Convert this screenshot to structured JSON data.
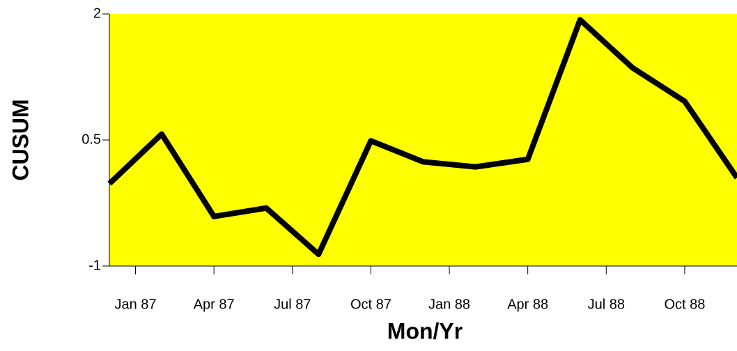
{
  "chart_data": {
    "type": "line",
    "x": [
      "1986-12",
      "1987-02",
      "1987-04",
      "1987-06",
      "1987-08",
      "1987-10",
      "1987-12",
      "1988-02",
      "1988-04",
      "1988-06",
      "1988-08",
      "1988-10",
      "1988-12"
    ],
    "series": [
      {
        "name": "CUSUM",
        "color": "#000000",
        "values": [
          -0.02,
          0.57,
          -0.41,
          -0.31,
          -0.86,
          0.49,
          0.24,
          0.18,
          0.27,
          1.93,
          1.36,
          0.96,
          0.05
        ]
      }
    ],
    "xlim": [
      "1986-12",
      "1988-12"
    ],
    "xticks": [
      {
        "value": "1987-01",
        "label": "Jan 87"
      },
      {
        "value": "1987-04",
        "label": "Apr 87"
      },
      {
        "value": "1987-07",
        "label": "Jul 87"
      },
      {
        "value": "1987-10",
        "label": "Oct 87"
      },
      {
        "value": "1988-01",
        "label": "Jan 88"
      },
      {
        "value": "1988-04",
        "label": "Apr 88"
      },
      {
        "value": "1988-07",
        "label": "Jul 88"
      },
      {
        "value": "1988-10",
        "label": "Oct 88"
      }
    ],
    "ylim": [
      -1,
      2
    ],
    "yticks": [
      -1,
      0.5,
      2
    ],
    "xlabel": "Mon/Yr",
    "ylabel": "CUSUM",
    "background": "#ffff00"
  }
}
